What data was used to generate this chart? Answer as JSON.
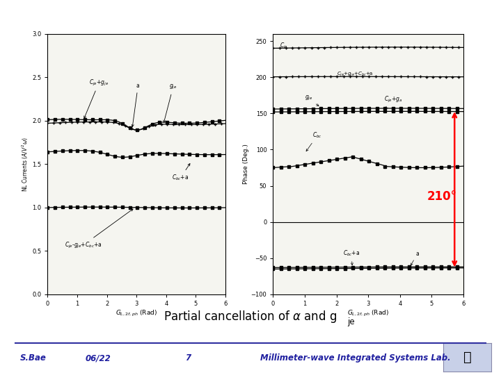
{
  "bg_color": "#ffffff",
  "header_bar_color": "#3030a0",
  "slide_bg": "#e8e8f0",
  "title_text": "Partial cancellation of α and g",
  "title_sub": "je",
  "footer_left": "S.Bae",
  "footer_mid": "06/22",
  "footer_page": "7",
  "footer_right": "Millimeter-wave Integrated Systems Lab.",
  "annotation_210": "210°",
  "left_ylabel": "NL Currents (A/V²ω)",
  "left_xlabel": "G_{L,2f,ph} (Rad)",
  "right_ylabel": "Phase (Deg.)",
  "right_xlabel": "G_{L,2f,ph} (Rad)",
  "left_ylim": [
    0,
    3
  ],
  "left_yticks": [
    0,
    0.5,
    1.0,
    1.5,
    2.0,
    2.5,
    3.0
  ],
  "left_xticks": [
    0,
    1,
    2,
    3,
    4,
    5,
    6
  ],
  "right_ylim": [
    -100,
    260
  ],
  "right_yticks": [
    -100,
    -50,
    0,
    50,
    100,
    150,
    200,
    250
  ],
  "right_xticks": [
    0,
    1,
    2,
    3,
    4,
    5,
    6
  ]
}
